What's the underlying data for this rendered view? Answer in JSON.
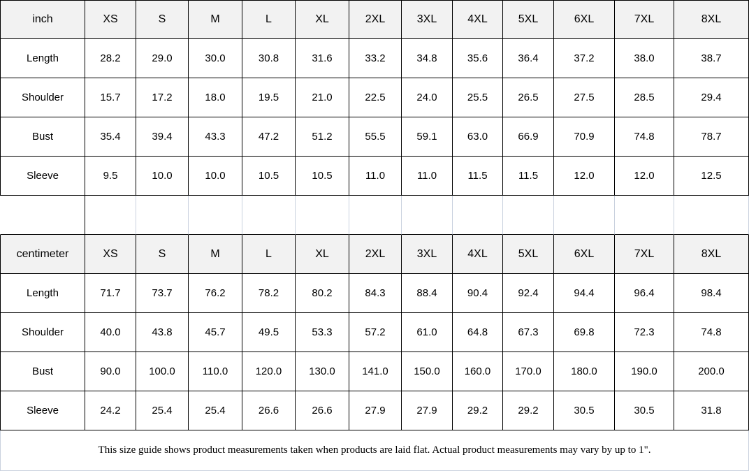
{
  "colors": {
    "table_border": "#000000",
    "spacer_gridline": "#c9d1de",
    "header_background": "#f2f2f2",
    "cell_background": "#ffffff",
    "text": "#000000",
    "footer_border": "#c9d1de"
  },
  "chart_data": [
    {
      "type": "table",
      "unit": "inch",
      "columns": [
        "XS",
        "S",
        "M",
        "L",
        "XL",
        "2XL",
        "3XL",
        "4XL",
        "5XL",
        "6XL",
        "7XL",
        "8XL"
      ],
      "rows": [
        {
          "label": "Length",
          "values": [
            "28.2",
            "29.0",
            "30.0",
            "30.8",
            "31.6",
            "33.2",
            "34.8",
            "35.6",
            "36.4",
            "37.2",
            "38.0",
            "38.7"
          ]
        },
        {
          "label": "Shoulder",
          "values": [
            "15.7",
            "17.2",
            "18.0",
            "19.5",
            "21.0",
            "22.5",
            "24.0",
            "25.5",
            "26.5",
            "27.5",
            "28.5",
            "29.4"
          ]
        },
        {
          "label": "Bust",
          "values": [
            "35.4",
            "39.4",
            "43.3",
            "47.2",
            "51.2",
            "55.5",
            "59.1",
            "63.0",
            "66.9",
            "70.9",
            "74.8",
            "78.7"
          ]
        },
        {
          "label": "Sleeve",
          "values": [
            "9.5",
            "10.0",
            "10.0",
            "10.5",
            "10.5",
            "11.0",
            "11.0",
            "11.5",
            "11.5",
            "12.0",
            "12.0",
            "12.5"
          ]
        }
      ]
    },
    {
      "type": "table",
      "unit": "centimeter",
      "columns": [
        "XS",
        "S",
        "M",
        "L",
        "XL",
        "2XL",
        "3XL",
        "4XL",
        "5XL",
        "6XL",
        "7XL",
        "8XL"
      ],
      "rows": [
        {
          "label": "Length",
          "values": [
            "71.7",
            "73.7",
            "76.2",
            "78.2",
            "80.2",
            "84.3",
            "88.4",
            "90.4",
            "92.4",
            "94.4",
            "96.4",
            "98.4"
          ]
        },
        {
          "label": "Shoulder",
          "values": [
            "40.0",
            "43.8",
            "45.7",
            "49.5",
            "53.3",
            "57.2",
            "61.0",
            "64.8",
            "67.3",
            "69.8",
            "72.3",
            "74.8"
          ]
        },
        {
          "label": "Bust",
          "values": [
            "90.0",
            "100.0",
            "110.0",
            "120.0",
            "130.0",
            "141.0",
            "150.0",
            "160.0",
            "170.0",
            "180.0",
            "190.0",
            "200.0"
          ]
        },
        {
          "label": "Sleeve",
          "values": [
            "24.2",
            "25.4",
            "25.4",
            "26.6",
            "26.6",
            "27.9",
            "27.9",
            "29.2",
            "29.2",
            "30.5",
            "30.5",
            "31.8"
          ]
        }
      ]
    }
  ],
  "footer": {
    "note": "This size guide shows product measurements taken when products are laid flat. Actual product measurements may vary by up to 1\"."
  }
}
